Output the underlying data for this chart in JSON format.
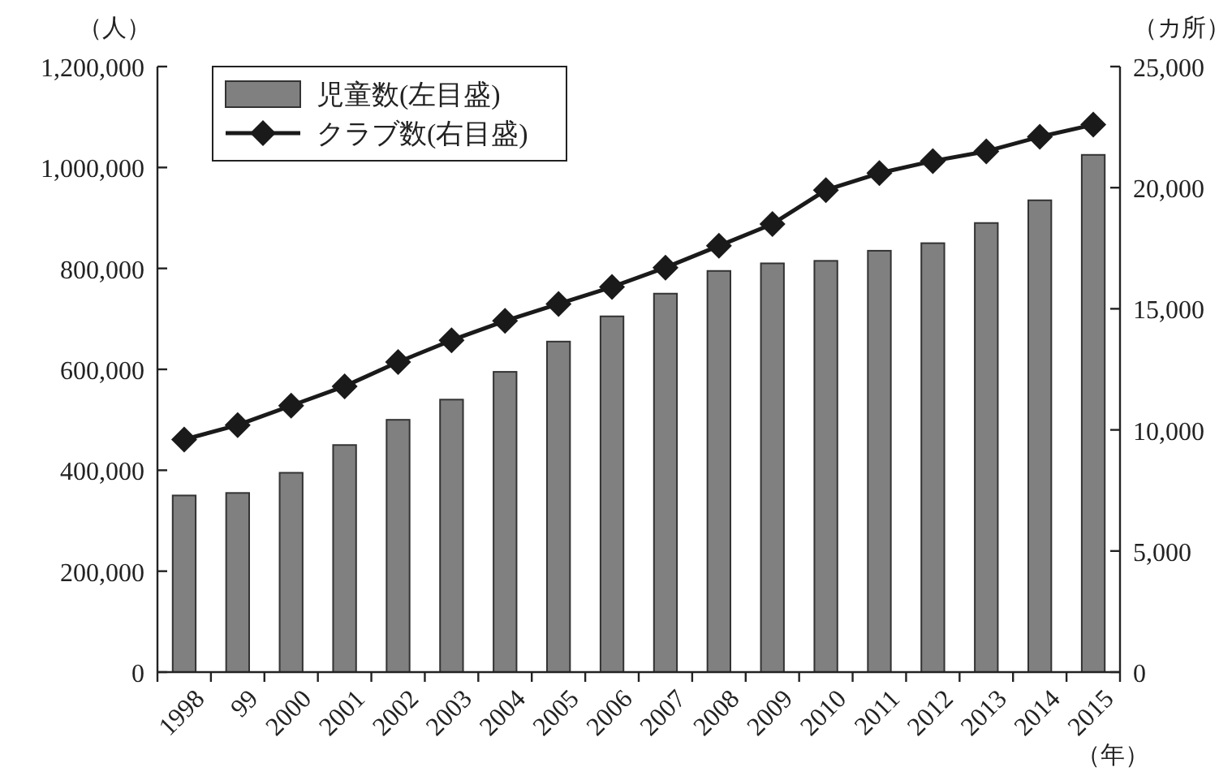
{
  "chart_data": {
    "type": "bar",
    "xlabel": "（年）",
    "ylabel": "（人）",
    "y2label": "（カ所）",
    "categories": [
      "1998",
      "99",
      "2000",
      "2001",
      "2002",
      "2003",
      "2004",
      "2005",
      "2006",
      "2007",
      "2008",
      "2009",
      "2010",
      "2011",
      "2012",
      "2013",
      "2014",
      "2015"
    ],
    "series": [
      {
        "name": "児童数(左目盛)",
        "color": "#808080",
        "values": [
          350000,
          355000,
          395000,
          450000,
          500000,
          540000,
          595000,
          655000,
          705000,
          750000,
          795000,
          810000,
          815000,
          835000,
          850000,
          890000,
          935000,
          1025000
        ]
      },
      {
        "name": "クラブ数(右目盛)",
        "type": "line",
        "axis": "y2",
        "color": "#1a1a1a",
        "marker": "diamond",
        "values": [
          9600,
          10200,
          11000,
          11800,
          12800,
          13700,
          14500,
          15200,
          15900,
          16700,
          17600,
          18500,
          19900,
          20600,
          21100,
          21500,
          22100,
          22600
        ]
      }
    ],
    "ylim": [
      0,
      1200000
    ],
    "yticks": [
      0,
      {
        "value": 200000,
        "label": "200,000"
      },
      {
        "value": 400000,
        "label": "400,000"
      },
      {
        "value": 600000,
        "label": "600,000"
      },
      {
        "value": 800000,
        "label": "800,000"
      },
      {
        "value": 1000000,
        "label": "1,000,000"
      },
      {
        "value": 1200000,
        "label": "1,200,000"
      }
    ],
    "y2lim": [
      0,
      25000
    ],
    "y2ticks": [
      0,
      {
        "value": 5000,
        "label": "5,000"
      },
      {
        "value": 10000,
        "label": "10,000"
      },
      {
        "value": 15000,
        "label": "15,000"
      },
      {
        "value": 20000,
        "label": "20,000"
      },
      {
        "value": 25000,
        "label": "25,000"
      }
    ],
    "legend": "top left"
  }
}
